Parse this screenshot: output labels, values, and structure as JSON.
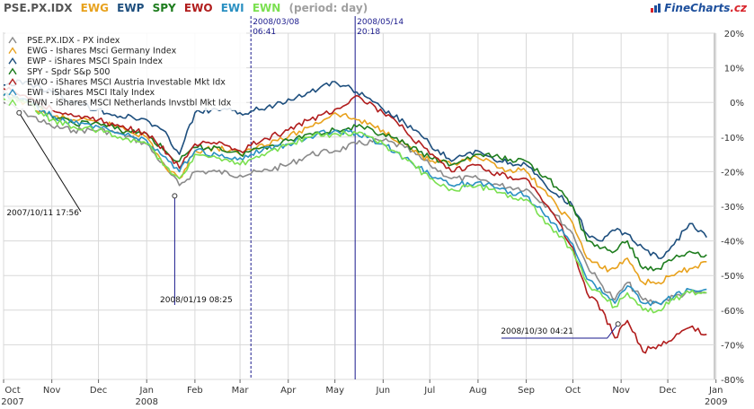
{
  "header": {
    "tickers": [
      {
        "text": "PSE.PX.IDX",
        "color": "#555555"
      },
      {
        "text": "EWG",
        "color": "#e8a21e"
      },
      {
        "text": "EWP",
        "color": "#1e4f7e"
      },
      {
        "text": "SPY",
        "color": "#1e7d1e"
      },
      {
        "text": "EWO",
        "color": "#b11d1d"
      },
      {
        "text": "EWI",
        "color": "#2a90c2"
      },
      {
        "text": "EWN",
        "color": "#7be050"
      }
    ],
    "period": "(period: day)",
    "logo_main": "FineCharts",
    "logo_dot": ".cz"
  },
  "chart_data": {
    "type": "line",
    "x_start": "2007-10-01",
    "x_end": "2008-12-31",
    "ylim": [
      -80,
      20
    ],
    "y_ticks": [
      20,
      10,
      0,
      -10,
      -20,
      -30,
      -40,
      -50,
      -60,
      -70,
      -80
    ],
    "y_unit": "%",
    "grid": true,
    "legend_position": "top-left",
    "x_ticks": [
      {
        "date": "2007-10-01",
        "label": "Oct",
        "year": "2007"
      },
      {
        "date": "2007-11-01",
        "label": "Nov",
        "year": ""
      },
      {
        "date": "2007-12-01",
        "label": "Dec",
        "year": ""
      },
      {
        "date": "2008-01-01",
        "label": "Jan",
        "year": "2008"
      },
      {
        "date": "2008-02-01",
        "label": "Feb",
        "year": ""
      },
      {
        "date": "2008-03-01",
        "label": "Mar",
        "year": ""
      },
      {
        "date": "2008-04-01",
        "label": "Apr",
        "year": ""
      },
      {
        "date": "2008-05-01",
        "label": "May",
        "year": ""
      },
      {
        "date": "2008-06-01",
        "label": "Jun",
        "year": ""
      },
      {
        "date": "2008-07-01",
        "label": "Jul",
        "year": ""
      },
      {
        "date": "2008-08-01",
        "label": "Aug",
        "year": ""
      },
      {
        "date": "2008-09-01",
        "label": "Sep",
        "year": ""
      },
      {
        "date": "2008-10-01",
        "label": "Oct",
        "year": ""
      },
      {
        "date": "2008-11-01",
        "label": "Nov",
        "year": ""
      },
      {
        "date": "2008-12-01",
        "label": "Dec",
        "year": ""
      },
      {
        "date": "2009-01-01",
        "label": "Jan",
        "year": "2009"
      }
    ],
    "markers": [
      {
        "date": "2008-03-08",
        "label": "2008/03/08",
        "time": "06:41",
        "style": "dashed"
      },
      {
        "date": "2008-05-14",
        "label": "2008/05/14",
        "time": "20:18",
        "style": "solid"
      }
    ],
    "callouts": [
      {
        "date": "2007-10-11",
        "value": -3,
        "text": "2007/10/11 17:56"
      },
      {
        "date": "2008-01-19",
        "value": -27,
        "text": "2008/01/19 08:25"
      },
      {
        "date": "2008-10-30",
        "value": -64,
        "text": "2008/10/30 04:21"
      }
    ],
    "series": [
      {
        "name": "PSE.PX.IDX - PX index",
        "color": "#8a8a8a",
        "x": [
          "2007-10-01",
          "2007-10-15",
          "2007-11-01",
          "2007-11-15",
          "2007-12-01",
          "2007-12-15",
          "2008-01-01",
          "2008-01-15",
          "2008-01-22",
          "2008-02-01",
          "2008-02-15",
          "2008-03-01",
          "2008-03-15",
          "2008-04-01",
          "2008-04-15",
          "2008-05-01",
          "2008-05-15",
          "2008-06-01",
          "2008-06-15",
          "2008-07-01",
          "2008-07-15",
          "2008-08-01",
          "2008-08-15",
          "2008-09-01",
          "2008-09-15",
          "2008-10-01",
          "2008-10-10",
          "2008-10-20",
          "2008-10-28",
          "2008-11-05",
          "2008-11-15",
          "2008-11-25",
          "2008-12-05",
          "2008-12-15",
          "2008-12-26"
        ],
        "values": [
          0,
          -3,
          -7,
          -8,
          -8,
          -9,
          -12,
          -20,
          -24,
          -20,
          -20,
          -21,
          -20,
          -18,
          -15,
          -14,
          -12,
          -11,
          -13,
          -18,
          -22,
          -22,
          -24,
          -25,
          -30,
          -38,
          -47,
          -53,
          -57,
          -52,
          -57,
          -58,
          -56,
          -55,
          -55
        ]
      },
      {
        "name": "EWG - Ishares Msci Germany Index",
        "color": "#e8a21e",
        "x": [
          "2007-10-01",
          "2007-10-15",
          "2007-11-01",
          "2007-11-15",
          "2007-12-01",
          "2007-12-15",
          "2008-01-01",
          "2008-01-15",
          "2008-01-22",
          "2008-02-01",
          "2008-02-15",
          "2008-03-01",
          "2008-03-15",
          "2008-04-01",
          "2008-04-15",
          "2008-05-01",
          "2008-05-15",
          "2008-06-01",
          "2008-06-15",
          "2008-07-01",
          "2008-07-15",
          "2008-08-01",
          "2008-08-15",
          "2008-09-01",
          "2008-09-15",
          "2008-10-01",
          "2008-10-10",
          "2008-10-20",
          "2008-10-28",
          "2008-11-05",
          "2008-11-15",
          "2008-11-25",
          "2008-12-05",
          "2008-12-15",
          "2008-12-26"
        ],
        "values": [
          2,
          0,
          -4,
          -5,
          -6,
          -7,
          -10,
          -20,
          -22,
          -14,
          -13,
          -15,
          -12,
          -10,
          -7,
          -3,
          -5,
          -8,
          -12,
          -17,
          -18,
          -16,
          -19,
          -20,
          -27,
          -35,
          -45,
          -48,
          -48,
          -45,
          -52,
          -52,
          -50,
          -48,
          -46
        ]
      },
      {
        "name": "EWP - iShares MSCI Spain Index",
        "color": "#1e4f7e",
        "x": [
          "2007-10-01",
          "2007-10-15",
          "2007-11-01",
          "2007-11-15",
          "2007-12-01",
          "2007-12-15",
          "2008-01-01",
          "2008-01-15",
          "2008-01-22",
          "2008-02-01",
          "2008-02-15",
          "2008-03-01",
          "2008-03-15",
          "2008-04-01",
          "2008-04-15",
          "2008-05-01",
          "2008-05-15",
          "2008-06-01",
          "2008-06-15",
          "2008-07-01",
          "2008-07-15",
          "2008-08-01",
          "2008-08-15",
          "2008-09-01",
          "2008-09-15",
          "2008-10-01",
          "2008-10-10",
          "2008-10-20",
          "2008-10-28",
          "2008-11-05",
          "2008-11-15",
          "2008-11-25",
          "2008-12-05",
          "2008-12-15",
          "2008-12-26"
        ],
        "values": [
          5,
          6,
          3,
          0,
          -2,
          -4,
          -5,
          -10,
          -15,
          -3,
          -2,
          -3,
          -2,
          1,
          3,
          6,
          3,
          -2,
          -6,
          -12,
          -17,
          -14,
          -17,
          -18,
          -25,
          -30,
          -38,
          -40,
          -37,
          -38,
          -42,
          -45,
          -41,
          -35,
          -39
        ]
      },
      {
        "name": "SPY - Spdr S&p 500",
        "color": "#1e7d1e",
        "x": [
          "2007-10-01",
          "2007-10-15",
          "2007-11-01",
          "2007-11-15",
          "2007-12-01",
          "2007-12-15",
          "2008-01-01",
          "2008-01-15",
          "2008-01-22",
          "2008-02-01",
          "2008-02-15",
          "2008-03-01",
          "2008-03-15",
          "2008-04-01",
          "2008-04-15",
          "2008-05-01",
          "2008-05-15",
          "2008-06-01",
          "2008-06-15",
          "2008-07-01",
          "2008-07-15",
          "2008-08-01",
          "2008-08-15",
          "2008-09-01",
          "2008-09-15",
          "2008-10-01",
          "2008-10-10",
          "2008-10-20",
          "2008-10-28",
          "2008-11-05",
          "2008-11-15",
          "2008-11-25",
          "2008-12-05",
          "2008-12-15",
          "2008-12-26"
        ],
        "values": [
          2,
          1,
          -4,
          -6,
          -6,
          -8,
          -9,
          -15,
          -17,
          -13,
          -13,
          -15,
          -13,
          -11,
          -9,
          -8,
          -7,
          -9,
          -12,
          -16,
          -18,
          -15,
          -16,
          -17,
          -22,
          -30,
          -40,
          -42,
          -43,
          -40,
          -48,
          -48,
          -45,
          -43,
          -44
        ]
      },
      {
        "name": "EWO - iShares MSCI Austria Investable Mkt Idx",
        "color": "#b11d1d",
        "x": [
          "2007-10-01",
          "2007-10-15",
          "2007-11-01",
          "2007-11-15",
          "2007-12-01",
          "2007-12-15",
          "2008-01-01",
          "2008-01-15",
          "2008-01-22",
          "2008-02-01",
          "2008-02-15",
          "2008-03-01",
          "2008-03-15",
          "2008-04-01",
          "2008-04-15",
          "2008-05-01",
          "2008-05-15",
          "2008-06-01",
          "2008-06-15",
          "2008-07-01",
          "2008-07-15",
          "2008-08-01",
          "2008-08-15",
          "2008-09-01",
          "2008-09-15",
          "2008-10-01",
          "2008-10-10",
          "2008-10-20",
          "2008-10-28",
          "2008-11-05",
          "2008-11-15",
          "2008-11-25",
          "2008-12-05",
          "2008-12-15",
          "2008-12-26"
        ],
        "values": [
          4,
          2,
          -2,
          -4,
          -5,
          -7,
          -9,
          -15,
          -19,
          -12,
          -12,
          -14,
          -11,
          -8,
          -5,
          -2,
          2,
          -3,
          -8,
          -15,
          -20,
          -18,
          -21,
          -22,
          -30,
          -42,
          -55,
          -60,
          -68,
          -63,
          -72,
          -70,
          -68,
          -65,
          -67
        ]
      },
      {
        "name": "EWI - iShares MSCI Italy Index",
        "color": "#2a90c2",
        "x": [
          "2007-10-01",
          "2007-10-15",
          "2007-11-01",
          "2007-11-15",
          "2007-12-01",
          "2007-12-15",
          "2008-01-01",
          "2008-01-15",
          "2008-01-22",
          "2008-02-01",
          "2008-02-15",
          "2008-03-01",
          "2008-03-15",
          "2008-04-01",
          "2008-04-15",
          "2008-05-01",
          "2008-05-15",
          "2008-06-01",
          "2008-06-15",
          "2008-07-01",
          "2008-07-15",
          "2008-08-01",
          "2008-08-15",
          "2008-09-01",
          "2008-09-15",
          "2008-10-01",
          "2008-10-10",
          "2008-10-20",
          "2008-10-28",
          "2008-11-05",
          "2008-11-15",
          "2008-11-25",
          "2008-12-05",
          "2008-12-15",
          "2008-12-26"
        ],
        "values": [
          2,
          1,
          -4,
          -6,
          -7,
          -9,
          -11,
          -17,
          -20,
          -14,
          -15,
          -16,
          -14,
          -12,
          -10,
          -8,
          -9,
          -12,
          -16,
          -21,
          -24,
          -23,
          -25,
          -27,
          -33,
          -41,
          -51,
          -55,
          -58,
          -53,
          -58,
          -58,
          -56,
          -54,
          -54
        ]
      },
      {
        "name": "EWN - iShares MSCI Netherlands Invstbl Mkt Idx",
        "color": "#7be050",
        "x": [
          "2007-10-01",
          "2007-10-15",
          "2007-11-01",
          "2007-11-15",
          "2007-12-01",
          "2007-12-15",
          "2008-01-01",
          "2008-01-15",
          "2008-01-22",
          "2008-02-01",
          "2008-02-15",
          "2008-03-01",
          "2008-03-15",
          "2008-04-01",
          "2008-04-15",
          "2008-05-01",
          "2008-05-15",
          "2008-06-01",
          "2008-06-15",
          "2008-07-01",
          "2008-07-15",
          "2008-08-01",
          "2008-08-15",
          "2008-09-01",
          "2008-09-15",
          "2008-10-01",
          "2008-10-10",
          "2008-10-20",
          "2008-10-28",
          "2008-11-05",
          "2008-11-15",
          "2008-11-25",
          "2008-12-05",
          "2008-12-15",
          "2008-12-26"
        ],
        "values": [
          1,
          0,
          -5,
          -7,
          -8,
          -10,
          -12,
          -19,
          -22,
          -15,
          -16,
          -18,
          -15,
          -12,
          -10,
          -9,
          -9,
          -12,
          -16,
          -22,
          -25,
          -24,
          -26,
          -28,
          -35,
          -43,
          -52,
          -56,
          -59,
          -55,
          -60,
          -60,
          -57,
          -55,
          -55
        ]
      }
    ]
  }
}
